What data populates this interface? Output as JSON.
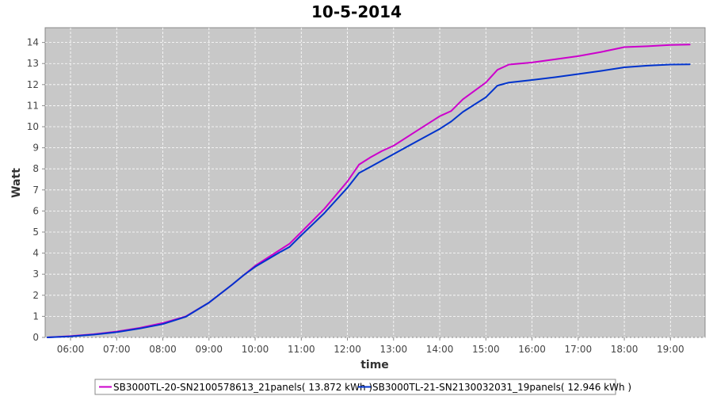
{
  "chart_data": {
    "type": "line",
    "title": "10-5-2014",
    "xlabel": "time",
    "ylabel": "Watt",
    "xlim": [
      "05:27",
      "19:45"
    ],
    "ylim": [
      0,
      14.7
    ],
    "x_ticks": [
      "06:00",
      "07:00",
      "08:00",
      "09:00",
      "10:00",
      "11:00",
      "12:00",
      "13:00",
      "14:00",
      "15:00",
      "16:00",
      "17:00",
      "18:00",
      "19:00"
    ],
    "y_ticks": [
      "0",
      "1",
      "2",
      "3",
      "4",
      "5",
      "6",
      "7",
      "8",
      "9",
      "10",
      "11",
      "12",
      "13",
      "14"
    ],
    "grid": true,
    "legend_position": "bottom",
    "colors": {
      "plot_bg": "#c8c8c8",
      "grid": "#ffffff",
      "frame": "#888888"
    },
    "series": [
      {
        "name": "SB3000TL-20-SN2100578613_21panels( 13.872 kWh )",
        "color": "#cc00cc",
        "points": [
          [
            "05:30",
            0.0
          ],
          [
            "06:00",
            0.06
          ],
          [
            "06:30",
            0.15
          ],
          [
            "07:00",
            0.28
          ],
          [
            "07:30",
            0.45
          ],
          [
            "08:00",
            0.68
          ],
          [
            "08:30",
            1.0
          ],
          [
            "09:00",
            1.65
          ],
          [
            "09:30",
            2.5
          ],
          [
            "09:45",
            2.95
          ],
          [
            "10:00",
            3.4
          ],
          [
            "10:30",
            4.1
          ],
          [
            "10:45",
            4.45
          ],
          [
            "11:00",
            5.0
          ],
          [
            "11:30",
            6.1
          ],
          [
            "12:00",
            7.4
          ],
          [
            "12:15",
            8.2
          ],
          [
            "12:30",
            8.55
          ],
          [
            "12:45",
            8.85
          ],
          [
            "13:00",
            9.1
          ],
          [
            "13:30",
            9.8
          ],
          [
            "14:00",
            10.5
          ],
          [
            "14:15",
            10.75
          ],
          [
            "14:30",
            11.3
          ],
          [
            "15:00",
            12.1
          ],
          [
            "15:15",
            12.7
          ],
          [
            "15:30",
            12.95
          ],
          [
            "16:00",
            13.05
          ],
          [
            "16:30",
            13.2
          ],
          [
            "17:00",
            13.35
          ],
          [
            "17:30",
            13.55
          ],
          [
            "18:00",
            13.78
          ],
          [
            "18:30",
            13.82
          ],
          [
            "19:00",
            13.88
          ],
          [
            "19:25",
            13.9
          ]
        ]
      },
      {
        "name": "SB3000TL-21-SN2130032031_19panels( 12.946 kWh )",
        "color": "#0033cc",
        "points": [
          [
            "05:30",
            0.0
          ],
          [
            "06:00",
            0.05
          ],
          [
            "06:30",
            0.13
          ],
          [
            "07:00",
            0.25
          ],
          [
            "07:30",
            0.42
          ],
          [
            "08:00",
            0.63
          ],
          [
            "08:30",
            0.98
          ],
          [
            "09:00",
            1.65
          ],
          [
            "09:30",
            2.5
          ],
          [
            "09:45",
            2.95
          ],
          [
            "10:00",
            3.35
          ],
          [
            "10:30",
            4.0
          ],
          [
            "10:45",
            4.3
          ],
          [
            "11:00",
            4.85
          ],
          [
            "11:30",
            5.9
          ],
          [
            "12:00",
            7.1
          ],
          [
            "12:15",
            7.8
          ],
          [
            "12:30",
            8.1
          ],
          [
            "12:45",
            8.4
          ],
          [
            "13:00",
            8.7
          ],
          [
            "13:30",
            9.3
          ],
          [
            "14:00",
            9.9
          ],
          [
            "14:15",
            10.25
          ],
          [
            "14:30",
            10.7
          ],
          [
            "15:00",
            11.4
          ],
          [
            "15:15",
            11.95
          ],
          [
            "15:30",
            12.1
          ],
          [
            "16:00",
            12.22
          ],
          [
            "16:30",
            12.35
          ],
          [
            "17:00",
            12.5
          ],
          [
            "17:30",
            12.65
          ],
          [
            "18:00",
            12.82
          ],
          [
            "18:30",
            12.9
          ],
          [
            "19:00",
            12.95
          ],
          [
            "19:25",
            12.96
          ]
        ]
      }
    ]
  }
}
